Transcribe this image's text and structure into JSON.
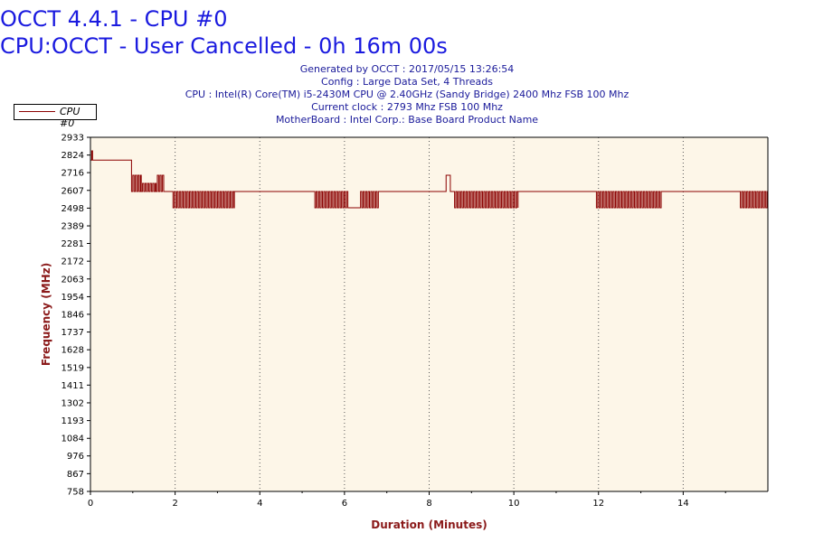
{
  "header": {
    "title": "OCCT 4.4.1 - CPU #0",
    "subtitle": "CPU:OCCT - User Cancelled - 0h 16m 00s",
    "info_lines": [
      "Generated by OCCT : 2017/05/15 13:26:54",
      "Config : Large Data Set, 4 Threads",
      "CPU : Intel(R) Core(TM) i5-2430M CPU @ 2.40GHz (Sandy Bridge) 2400 Mhz FSB 100 Mhz",
      "Current clock : 2793 Mhz FSB 100 Mhz",
      "MotherBoard : Intel Corp.: Base Board Product Name"
    ]
  },
  "colors": {
    "title": "#1a1adf",
    "info": "#1a1a9a",
    "series": "#8b0000",
    "plot_bg": "#fdf6e8",
    "axis_title": "#8b1a1a"
  },
  "chart_data": {
    "type": "line",
    "xlabel": "Duration (Minutes)",
    "ylabel": "Frequency (MHz)",
    "xlim": [
      0,
      16
    ],
    "ylim": [
      758,
      2933
    ],
    "x_ticks": [
      0,
      2,
      4,
      6,
      8,
      10,
      12,
      14
    ],
    "y_ticks": [
      758,
      867,
      976,
      1084,
      1193,
      1302,
      1411,
      1519,
      1628,
      1737,
      1846,
      1954,
      2063,
      2172,
      2281,
      2389,
      2498,
      2607,
      2716,
      2824,
      2933
    ],
    "grid": "vertical dotted",
    "legend": "top-left",
    "series": [
      {
        "name": "CPU #0",
        "segments": [
          {
            "from": 0.0,
            "to": 0.03,
            "kind": "flat",
            "value": 2793
          },
          {
            "from": 0.03,
            "to": 0.05,
            "kind": "flat",
            "value": 2850
          },
          {
            "from": 0.05,
            "to": 0.97,
            "kind": "flat",
            "value": 2793
          },
          {
            "from": 0.97,
            "to": 1.2,
            "kind": "osc",
            "values": [
              2600,
              2700
            ]
          },
          {
            "from": 1.2,
            "to": 1.55,
            "kind": "osc",
            "values": [
              2600,
              2650
            ]
          },
          {
            "from": 1.55,
            "to": 1.75,
            "kind": "osc",
            "values": [
              2600,
              2700
            ]
          },
          {
            "from": 1.75,
            "to": 1.95,
            "kind": "flat",
            "value": 2600
          },
          {
            "from": 1.95,
            "to": 3.4,
            "kind": "osc",
            "values": [
              2500,
              2600
            ]
          },
          {
            "from": 3.4,
            "to": 5.3,
            "kind": "flat",
            "value": 2600
          },
          {
            "from": 5.3,
            "to": 6.1,
            "kind": "osc",
            "values": [
              2500,
              2600
            ]
          },
          {
            "from": 6.1,
            "to": 6.35,
            "kind": "flat",
            "value": 2500
          },
          {
            "from": 6.35,
            "to": 6.8,
            "kind": "osc",
            "values": [
              2500,
              2600
            ]
          },
          {
            "from": 6.8,
            "to": 8.4,
            "kind": "flat",
            "value": 2600
          },
          {
            "from": 8.4,
            "to": 8.5,
            "kind": "flat",
            "value": 2700
          },
          {
            "from": 8.5,
            "to": 8.6,
            "kind": "flat",
            "value": 2600
          },
          {
            "from": 8.6,
            "to": 10.1,
            "kind": "osc",
            "values": [
              2500,
              2600
            ]
          },
          {
            "from": 10.1,
            "to": 11.95,
            "kind": "flat",
            "value": 2600
          },
          {
            "from": 11.95,
            "to": 13.5,
            "kind": "osc",
            "values": [
              2500,
              2600
            ]
          },
          {
            "from": 13.5,
            "to": 14.1,
            "kind": "flat",
            "value": 2600
          },
          {
            "from": 14.1,
            "to": 15.35,
            "kind": "flat",
            "value": 2600
          },
          {
            "from": 15.35,
            "to": 16.0,
            "kind": "osc",
            "values": [
              2500,
              2600
            ]
          }
        ]
      }
    ]
  }
}
